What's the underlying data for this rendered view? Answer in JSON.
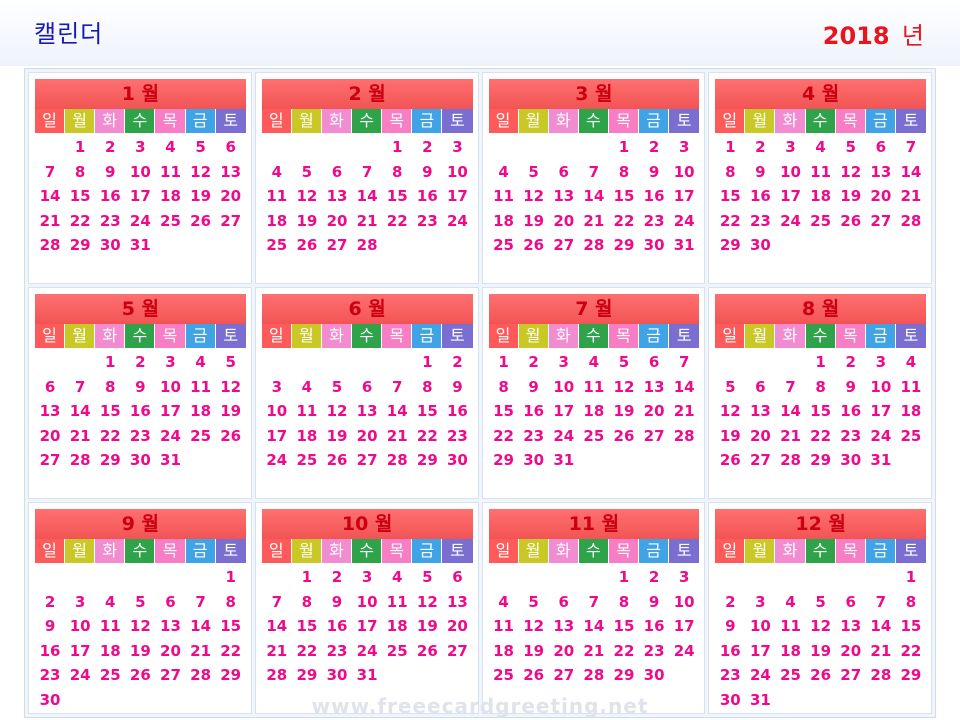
{
  "header": {
    "title": "캘린더",
    "year": "2018",
    "year_unit": "년"
  },
  "weekdays": [
    {
      "label": "일",
      "color": "#ff5a5a"
    },
    {
      "label": "월",
      "color": "#c9c826"
    },
    {
      "label": "화",
      "color": "#f08ccf"
    },
    {
      "label": "수",
      "color": "#2ea34a"
    },
    {
      "label": "목",
      "color": "#f77ec4"
    },
    {
      "label": "금",
      "color": "#3fa3e6"
    },
    {
      "label": "토",
      "color": "#7a6fd0"
    }
  ],
  "months": [
    {
      "title": "1 월",
      "start": 1,
      "days": 31
    },
    {
      "title": "2 월",
      "start": 4,
      "days": 28
    },
    {
      "title": "3 월",
      "start": 4,
      "days": 31
    },
    {
      "title": "4 월",
      "start": 0,
      "days": 30
    },
    {
      "title": "5 월",
      "start": 2,
      "days": 31
    },
    {
      "title": "6 월",
      "start": 5,
      "days": 30
    },
    {
      "title": "7 월",
      "start": 0,
      "days": 31
    },
    {
      "title": "8 월",
      "start": 3,
      "days": 31
    },
    {
      "title": "9 월",
      "start": 6,
      "days": 30
    },
    {
      "title": "10 월",
      "start": 1,
      "days": 31
    },
    {
      "title": "11 월",
      "start": 4,
      "days": 30
    },
    {
      "title": "12 월",
      "start": 6,
      "days": 31
    }
  ],
  "watermark": "www.freeecardgreeting.net"
}
